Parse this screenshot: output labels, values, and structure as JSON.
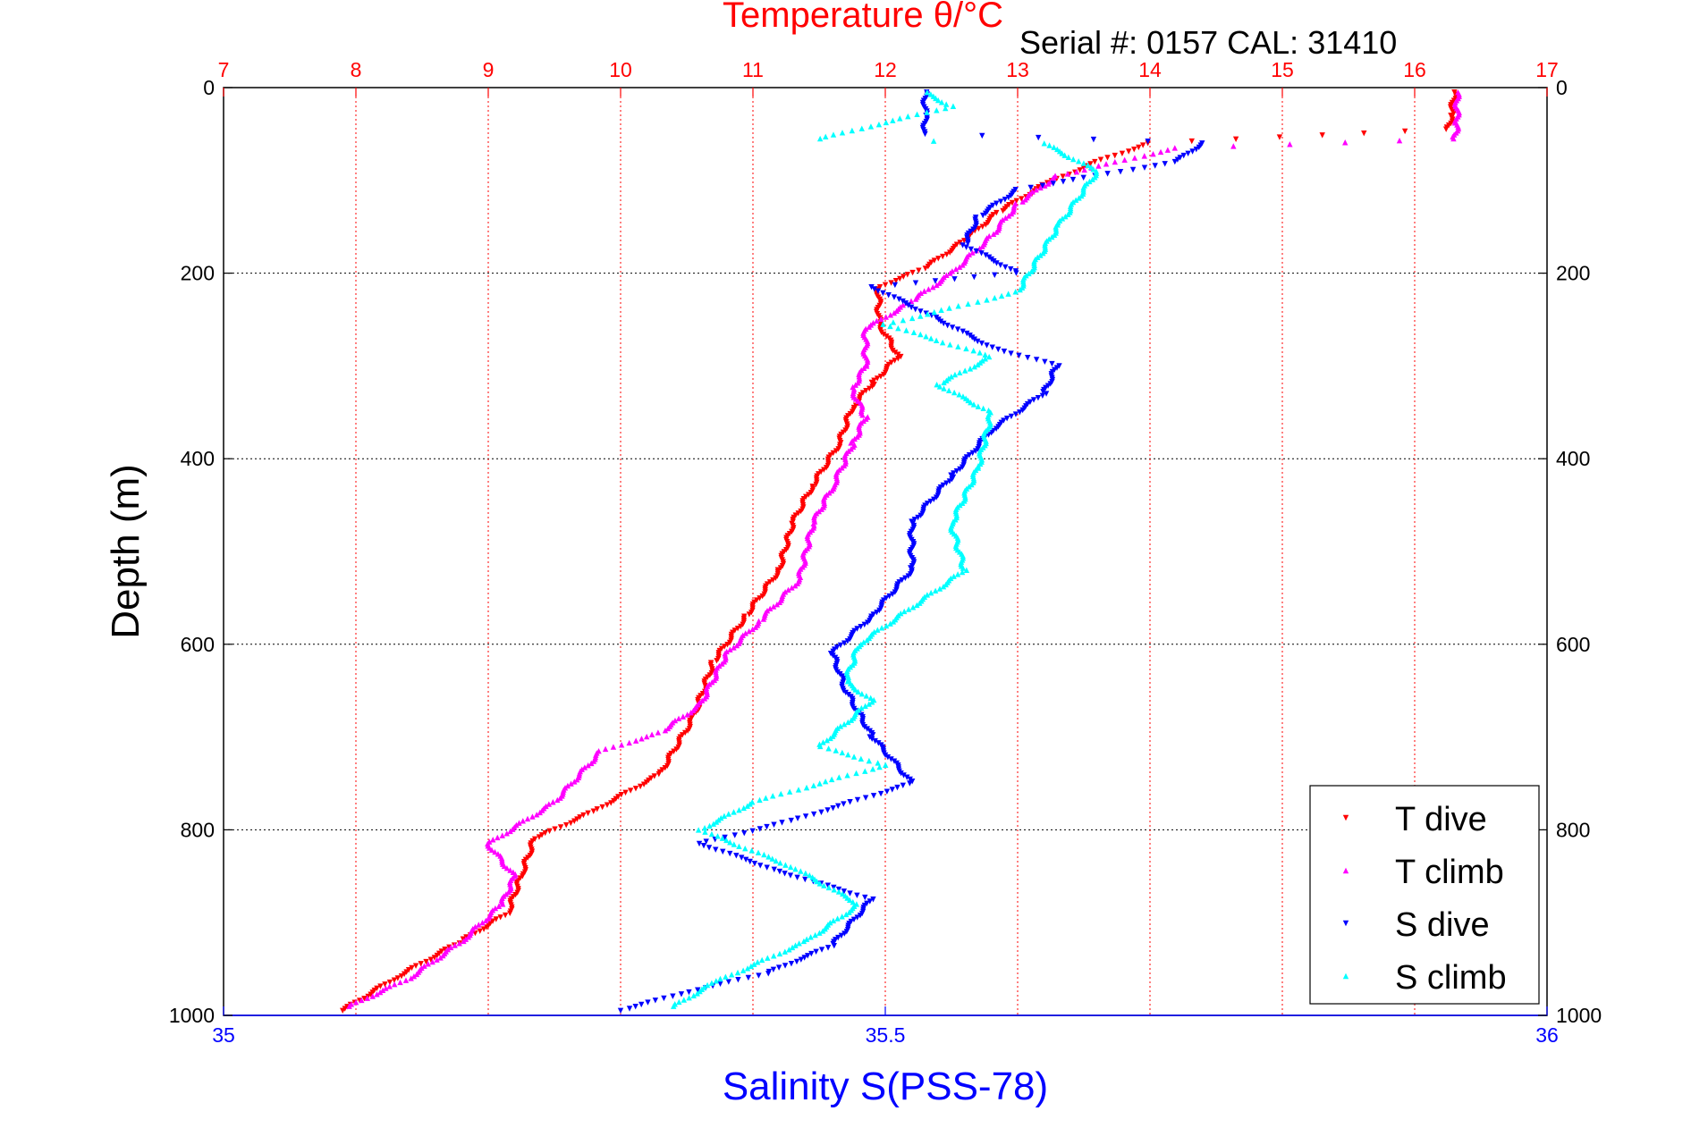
{
  "chart_data": {
    "type": "scatter",
    "title": "Temperature θ/°C",
    "annotation": "Serial #: 0157  CAL: 31410",
    "ylabel": "Depth (m)",
    "xlabel_bottom": "Salinity S(PSS-78)",
    "xlabel_top": "Temperature θ/°C",
    "ylim": [
      1000,
      0
    ],
    "y_reversed": true,
    "temperature_axis": {
      "position": "top",
      "range": [
        7,
        17
      ],
      "ticks": [
        "7",
        "8",
        "9",
        "10",
        "11",
        "12",
        "13",
        "14",
        "15",
        "16",
        "17"
      ]
    },
    "salinity_axis": {
      "position": "bottom",
      "range": [
        35,
        36
      ],
      "ticks": [
        "35",
        "35.5",
        "36"
      ]
    },
    "depth_ticks": [
      "0",
      "200",
      "400",
      "600",
      "800",
      "1000"
    ],
    "depth_tick_values": [
      0,
      200,
      400,
      600,
      800,
      1000
    ],
    "temperature_tick_values": [
      7,
      8,
      9,
      10,
      11,
      12,
      13,
      14,
      15,
      16,
      17
    ],
    "salinity_tick_values": [
      35,
      35.5,
      36
    ],
    "grid": true,
    "legend_position": "bottom-right",
    "colors": {
      "temperature_axis": "#ff0000",
      "salinity_axis": "#0000ff",
      "grid": "#000000"
    },
    "series": [
      {
        "name": "T dive",
        "axis": "temperature",
        "color": "#ff0000",
        "marker": "triangle-down",
        "points": [
          [
            16.3,
            5
          ],
          [
            16.28,
            30
          ],
          [
            16.25,
            45
          ],
          [
            14.0,
            60
          ],
          [
            13.6,
            80
          ],
          [
            13.2,
            105
          ],
          [
            12.85,
            135
          ],
          [
            12.6,
            165
          ],
          [
            12.3,
            195
          ],
          [
            11.95,
            215
          ],
          [
            11.95,
            255
          ],
          [
            12.1,
            290
          ],
          [
            11.9,
            320
          ],
          [
            11.75,
            345
          ],
          [
            11.65,
            385
          ],
          [
            11.45,
            430
          ],
          [
            11.3,
            470
          ],
          [
            11.2,
            520
          ],
          [
            10.95,
            570
          ],
          [
            10.7,
            620
          ],
          [
            10.55,
            680
          ],
          [
            10.3,
            740
          ],
          [
            9.8,
            780
          ],
          [
            9.35,
            810
          ],
          [
            9.25,
            850
          ],
          [
            9.15,
            890
          ],
          [
            8.8,
            920
          ],
          [
            8.3,
            960
          ],
          [
            7.9,
            995
          ]
        ]
      },
      {
        "name": "T climb",
        "axis": "temperature",
        "color": "#ff00ff",
        "marker": "triangle-up",
        "points": [
          [
            16.32,
            5
          ],
          [
            16.32,
            40
          ],
          [
            16.3,
            55
          ],
          [
            14.2,
            65
          ],
          [
            13.3,
            95
          ],
          [
            13.0,
            125
          ],
          [
            12.8,
            160
          ],
          [
            12.5,
            200
          ],
          [
            12.2,
            230
          ],
          [
            11.85,
            260
          ],
          [
            11.85,
            300
          ],
          [
            11.75,
            325
          ],
          [
            11.85,
            355
          ],
          [
            11.75,
            385
          ],
          [
            11.6,
            430
          ],
          [
            11.45,
            470
          ],
          [
            11.35,
            530
          ],
          [
            11.05,
            575
          ],
          [
            10.8,
            610
          ],
          [
            10.6,
            665
          ],
          [
            10.3,
            695
          ],
          [
            9.85,
            715
          ],
          [
            9.5,
            770
          ],
          [
            9.0,
            815
          ],
          [
            9.2,
            850
          ],
          [
            9.1,
            880
          ],
          [
            8.8,
            920
          ],
          [
            8.4,
            960
          ],
          [
            7.95,
            990
          ]
        ]
      },
      {
        "name": "S dive",
        "axis": "salinity",
        "color": "#0000ff",
        "marker": "triangle-down",
        "points": [
          [
            35.53,
            5
          ],
          [
            35.53,
            30
          ],
          [
            35.53,
            50
          ],
          [
            35.74,
            60
          ],
          [
            35.72,
            80
          ],
          [
            35.6,
            110
          ],
          [
            35.57,
            140
          ],
          [
            35.56,
            170
          ],
          [
            35.6,
            200
          ],
          [
            35.49,
            215
          ],
          [
            35.54,
            250
          ],
          [
            35.58,
            280
          ],
          [
            35.63,
            300
          ],
          [
            35.62,
            330
          ],
          [
            35.58,
            370
          ],
          [
            35.55,
            420
          ],
          [
            35.52,
            470
          ],
          [
            35.52,
            520
          ],
          [
            35.49,
            570
          ],
          [
            35.46,
            610
          ],
          [
            35.47,
            650
          ],
          [
            35.49,
            700
          ],
          [
            35.52,
            750
          ],
          [
            35.43,
            790
          ],
          [
            35.36,
            815
          ],
          [
            35.42,
            845
          ],
          [
            35.49,
            875
          ],
          [
            35.46,
            925
          ],
          [
            35.41,
            955
          ],
          [
            35.35,
            975
          ],
          [
            35.3,
            995
          ]
        ]
      },
      {
        "name": "S climb",
        "axis": "salinity",
        "color": "#00ffff",
        "marker": "triangle-up",
        "points": [
          [
            35.53,
            5
          ],
          [
            35.55,
            20
          ],
          [
            35.45,
            55
          ],
          [
            35.62,
            60
          ],
          [
            35.66,
            90
          ],
          [
            35.63,
            150
          ],
          [
            35.6,
            220
          ],
          [
            35.5,
            255
          ],
          [
            35.58,
            290
          ],
          [
            35.54,
            320
          ],
          [
            35.58,
            350
          ],
          [
            35.57,
            410
          ],
          [
            35.55,
            470
          ],
          [
            35.56,
            520
          ],
          [
            35.48,
            600
          ],
          [
            35.47,
            640
          ],
          [
            35.49,
            660
          ],
          [
            35.45,
            710
          ],
          [
            35.5,
            730
          ],
          [
            35.4,
            770
          ],
          [
            35.36,
            800
          ],
          [
            35.43,
            840
          ],
          [
            35.48,
            880
          ],
          [
            35.44,
            920
          ],
          [
            35.37,
            965
          ],
          [
            35.34,
            990
          ]
        ]
      }
    ]
  }
}
